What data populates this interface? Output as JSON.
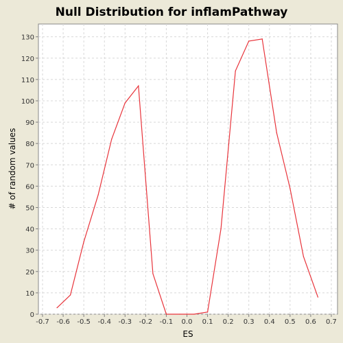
{
  "chart_data": {
    "type": "line",
    "title": "Null Distribution for inflamPathway",
    "xlabel": "ES",
    "ylabel": "# of random values",
    "xlim": [
      -0.72,
      0.73
    ],
    "ylim": [
      0,
      136
    ],
    "xticks": [
      -0.7,
      -0.6,
      -0.5,
      -0.4,
      -0.3,
      -0.2,
      -0.1,
      0.0,
      0.1,
      0.2,
      0.3,
      0.4,
      0.5,
      0.6,
      0.7
    ],
    "xtick_labels": [
      "-0.7",
      "-0.6",
      "-0.5",
      "-0.4",
      "-0.3",
      "-0.2",
      "-0.1",
      "0.0",
      "0.1",
      "0.2",
      "0.3",
      "0.4",
      "0.5",
      "0.6",
      "0.7"
    ],
    "yticks": [
      0,
      10,
      20,
      30,
      40,
      50,
      60,
      70,
      80,
      90,
      100,
      110,
      120,
      130
    ],
    "ytick_labels": [
      "0",
      "10",
      "20",
      "30",
      "40",
      "50",
      "60",
      "70",
      "80",
      "90",
      "100",
      "110",
      "120",
      "130"
    ],
    "grid": true,
    "series": [
      {
        "color": "#e8333a",
        "x": [
          -0.63,
          -0.565,
          -0.5,
          -0.43,
          -0.365,
          -0.3,
          -0.235,
          -0.165,
          -0.1,
          -0.035,
          0.035,
          0.1,
          0.165,
          0.235,
          0.3,
          0.365,
          0.435,
          0.5,
          0.565,
          0.635
        ],
        "y": [
          3,
          9,
          34,
          56,
          82,
          99,
          107,
          19,
          0,
          0,
          0,
          1,
          40,
          114,
          128,
          129,
          85,
          59,
          27,
          8
        ]
      }
    ]
  }
}
